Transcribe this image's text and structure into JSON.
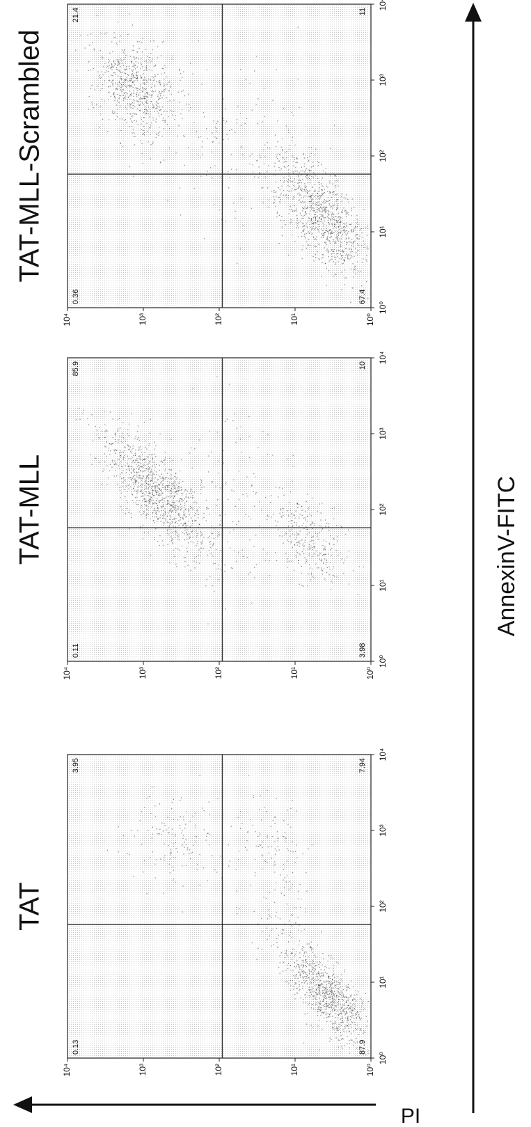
{
  "x_axis_label": "AnnexinV-FITC",
  "y_axis_label": "PI",
  "axis_ticks": [
    "10⁰",
    "10¹",
    "10²",
    "10³",
    "10⁴"
  ],
  "panels": [
    {
      "title": "TAT",
      "quadrants": {
        "upper_left": 0.13,
        "upper_right": 3.95,
        "lower_left": 87.9,
        "lower_right": 7.94
      }
    },
    {
      "title": "TAT-MLL",
      "quadrants": {
        "upper_left": 0.11,
        "upper_right": 85.9,
        "lower_left": 3.98,
        "lower_right": 10
      }
    },
    {
      "title": "TAT-MLL-Scrambled",
      "quadrants": {
        "upper_left": 0.36,
        "upper_right": 21.4,
        "lower_left": 67.4,
        "lower_right": 11
      }
    }
  ]
}
